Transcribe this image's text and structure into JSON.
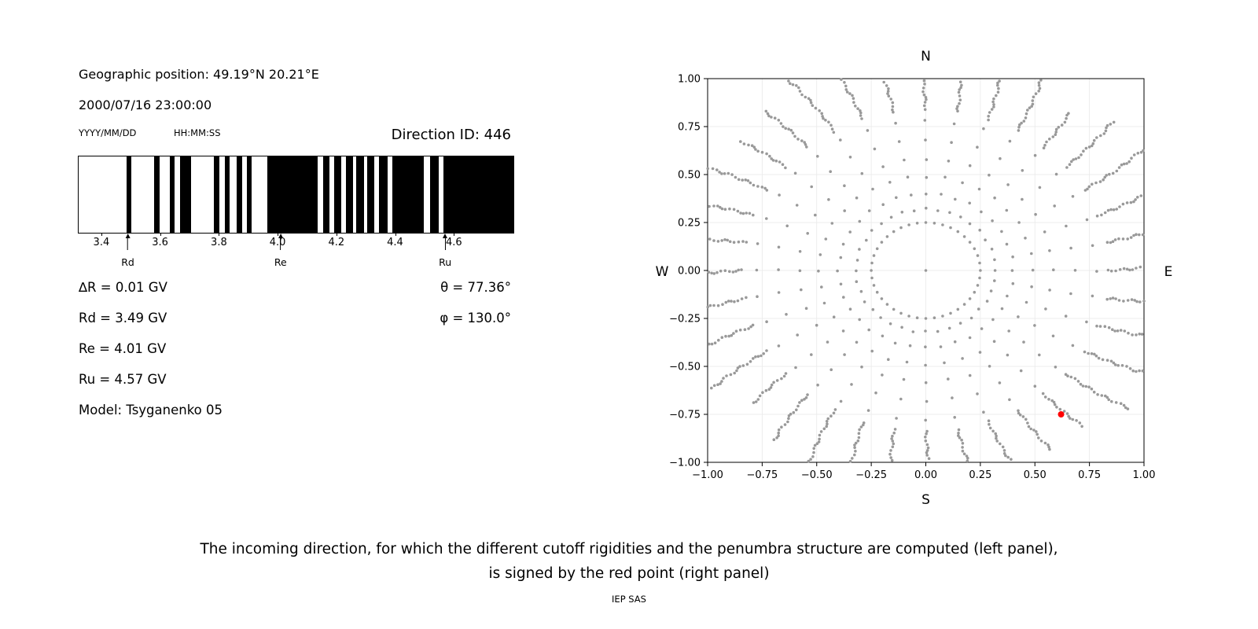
{
  "left_panel": {
    "geo_position": "Geographic position: 49.19°N 20.21°E",
    "datetime": "2000/07/16 23:00:00",
    "date_format_label": "YYYY/MM/DD",
    "time_format_label": "HH:MM:SS",
    "direction_id": "Direction ID: 446",
    "params": {
      "delta_r": "∆R = 0.01 GV",
      "rd": "Rd = 3.49 GV",
      "re": "Re = 4.01 GV",
      "ru": "Ru = 4.57 GV",
      "model": "Model: Tsyganenko 05",
      "theta": "θ = 77.36°",
      "phi": "φ = 130.0°"
    }
  },
  "caption": {
    "line1": "The incoming direction, for which the different cutoff rigidities and the penumbra structure are computed (left panel),",
    "line2": "is signed by the red point (right panel)",
    "credit": "IEP SAS"
  },
  "chart_data": [
    {
      "type": "bar",
      "name": "penumbra-structure",
      "xlim": [
        3.32,
        4.8
      ],
      "xticks": [
        3.4,
        3.6,
        3.8,
        4.0,
        4.2,
        4.4,
        4.6
      ],
      "band_color": "#000000",
      "bands_gv": [
        [
          3.483,
          3.499
        ],
        [
          3.577,
          3.596
        ],
        [
          3.63,
          3.646
        ],
        [
          3.665,
          3.703
        ],
        [
          3.78,
          3.799
        ],
        [
          3.818,
          3.834
        ],
        [
          3.858,
          3.877
        ],
        [
          3.893,
          3.909
        ],
        [
          3.962,
          4.133
        ],
        [
          4.152,
          4.174
        ],
        [
          4.19,
          4.214
        ],
        [
          4.23,
          4.254
        ],
        [
          4.265,
          4.291
        ],
        [
          4.302,
          4.326
        ],
        [
          4.342,
          4.372
        ],
        [
          4.388,
          4.495
        ],
        [
          4.516,
          4.546
        ],
        [
          4.562,
          4.8
        ]
      ],
      "markers": [
        {
          "label": "Rd",
          "x": 3.49
        },
        {
          "label": "Re",
          "x": 4.01
        },
        {
          "label": "Ru",
          "x": 4.57
        }
      ]
    },
    {
      "type": "scatter",
      "name": "incoming-directions",
      "xlim": [
        -1.0,
        1.0
      ],
      "ylim": [
        -1.0,
        1.0
      ],
      "xticks": [
        -1.0,
        -0.75,
        -0.5,
        -0.25,
        0.0,
        0.25,
        0.5,
        0.75,
        1.0
      ],
      "yticks": [
        -1.0,
        -0.75,
        -0.5,
        -0.25,
        0.0,
        0.25,
        0.5,
        0.75,
        1.0
      ],
      "grid": true,
      "grid_color": "#e9e9e9",
      "compass_labels": {
        "top": "N",
        "bottom": "S",
        "left": "W",
        "right": "E"
      },
      "dot_color": "#999999",
      "red_point": {
        "x": 0.62,
        "y": -0.75,
        "color": "#ff0000"
      },
      "pattern": {
        "spoke_count": 36,
        "center_dot": true,
        "inner_ring_radius": 0.25,
        "inner_ring_dots": 40,
        "sparse_radii": [
          0.32,
          0.4,
          0.49,
          0.58,
          0.68,
          0.78
        ],
        "dense_start": 0.84,
        "dense_step": 0.016,
        "dense_end": 1.18,
        "clip": 1.0
      }
    }
  ]
}
